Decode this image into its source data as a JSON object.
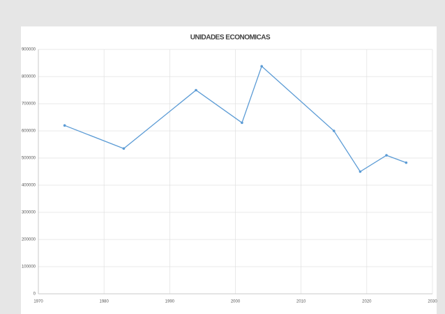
{
  "chart_data": {
    "type": "line",
    "title": "UNIDADES ECONOMICAS",
    "x": [
      1974,
      1983,
      1994,
      2001,
      2004,
      2015,
      2019,
      2023,
      2026
    ],
    "series": [
      {
        "name": "UNIDADES ECONOMICAS",
        "color": "#5b9bd5",
        "values": [
          620000,
          535000,
          750000,
          630000,
          838000,
          600000,
          450000,
          510000,
          483000
        ]
      }
    ],
    "xlim": [
      1970,
      2030
    ],
    "xticks": [
      1970,
      1980,
      1990,
      2000,
      2010,
      2020,
      2030
    ],
    "ylim": [
      0,
      900000
    ],
    "yticks": [
      0,
      100000,
      200000,
      300000,
      400000,
      500000,
      600000,
      700000,
      800000,
      900000
    ],
    "grid": true
  }
}
